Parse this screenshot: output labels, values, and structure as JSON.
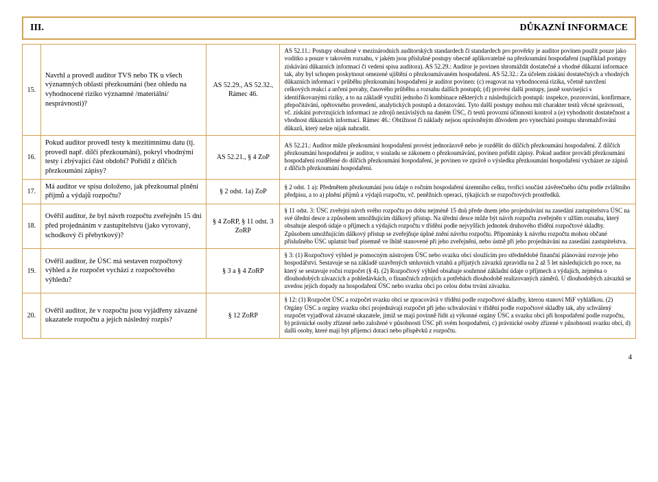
{
  "colors": {
    "border": "#d4a050",
    "text": "#000000",
    "background": "#ffffff"
  },
  "fonts": {
    "family": "Times New Roman",
    "body_size_pt": 10,
    "answer_size_pt": 9,
    "header_size_pt": 14
  },
  "section": {
    "number": "III.",
    "title": "DŮKAZNÍ INFORMACE"
  },
  "rows": [
    {
      "n": "15.",
      "question": "Navrhl a provedl auditor TVS nebo TK u všech významných oblastí přezkoumání (bez ohledu na vyhodnocené riziko významné /materiální/ nesprávnosti)?",
      "ref": "AS 52.29., AS 52.32., Rámec 46.",
      "answer": "AS 52.11.: Postupy obsažené v mezinárodních auditorských standardech či standardech pro prověrky je auditor povinen použít pouze jako vodítko a pouze v takovém rozsahu, v jakém jsou příslušné postupy obecně aplikovatelné na přezkoumání hospodaření (například postupy získávání důkazních informací či vedení spisu auditora). AS 52.29.: Auditor je povinen shromáždit dostatečné a vhodné důkazní informace tak, aby byl schopen poskytnout omezené ujištění o přezkoumávaném hospodaření. AS 52.32.: Za účelem získání dostatečných a vhodných důkazních informací v průběhu přezkoumání hospodaření je auditor povinen: (c) reagovat na vyhodnocená rizika, včetně navržení celkových reakcí a určení povahy, časového průběhu a rozsahu dalších postupů; (d) provést další postupy, jasně související s identifikovanými riziky, a to na základě využití jednoho či kombinace některých z následujících postupů: inspekce, pozorování, konfirmace, přepočítávání, opětovného provedení, analytických postupů a dotazování. Tyto další postupy mohou mít charakter testů věcné správnosti, vč. získání potvrzujících informací ze zdrojů nezávislých na daném ÚSC, či testů provozní účinnosti kontrol a (e) vyhodnotit dostatečnost a vhodnost důkazních informací. Rámec 46.: Obtížnost či náklady nejsou oprávněným důvodem pro vynechání postupu shromažďování důkazů, který nelze nijak nahradit."
    },
    {
      "n": "16.",
      "question": "Pokud auditor provedl testy k mezitímnímu datu (tj. provedl např. dílčí přezkoumání), pokryl vhodnými testy i zbývající část období? Pořídil z dílčích přezkoumání zápisy?",
      "ref": "AS 52.21., § 4 ZoP",
      "answer": "AS 52.21.: Auditor může přezkoumání hospodaření provést jednorázově nebo je rozdělit do dílčích přezkoumání hospodaření. Z dílčích přezkoumání hospodaření je auditor, v souladu se zákonem o přezkoumávání, povinen pořídit zápisy. Pokud auditor provádí přezkoumání hospodaření rozdělené do dílčích přezkoumání hospodaření, je povinen ve zprávě o výsledku přezkoumání hospodaření vycházet ze zápisů z dílčích přezkoumání hospodaření."
    },
    {
      "n": "17.",
      "question": "Má auditor ve spisu doloženo, jak přezkoumal plnění příjmů a výdajů rozpočtu?",
      "ref": "§ 2 odst. 1a) ZoP",
      "answer": "§ 2 odst. 1 a): Předmětem přezkoumání jsou údaje o ročním hospodaření územního celku, tvořící součást závěrečného účtu podle zvláštního předpisu, a to a) plnění příjmů a výdajů rozpočtu, vč. peněžních operací, týkajících se rozpočtových prostředků."
    },
    {
      "n": "18.",
      "question": "Ověřil auditor, že byl návrh rozpočtu zveřejněn 15 dní před projednáním v zastupitelstvu (jako vyrovaný, schodkový či přebytkový)?",
      "ref": "§ 4 ZoRP, § 11 odst. 3 ZoRP",
      "answer": "§ 11 odst. 3: ÚSC zveřejní návrh svého rozpočtu po dobu nejméně 15 dnů přede dnem jeho projednávání na zasedání zastupitelstva ÚSC na své úřední desce a způsobem umožňujícím dálkový přístup. Na úřední desce může být návrh rozpočtu zveřejněn v užším rozsahu, který obsahuje alespoň údaje o příjmech a výdajích rozpočtu v třídění podle nejvyšších jednotek druhového třídění rozpočtové skladby. Způsobem umožňujícím dálkový přístup se zveřejňuje úplné znění návrhu rozpočtu. Připomínky k návrhu rozpočtu mohou občané příslušného ÚSC uplatnit buď písemně ve lhůtě stanovené při jeho zveřejnění, nebo ústně při jeho projednávání na zasedání zastupitelstva."
    },
    {
      "n": "19.",
      "question": "Ověřil auditor, že ÚSC má sestaven rozpočtový výhled a že rozpočet vychází z rozpočtového výhledu?",
      "ref": "§ 3 a § 4 ZoRP",
      "answer": "§ 3: (1) Rozpočtový výhled je pomocným nástrojem ÚSC nebo svazku obcí sloužícím pro střednědobé finanční plánování rozvoje jeho hospodářství. Sestavuje se na základě uzavřených smluvních vztahů a přijatých závazků zpravidla na 2 až 5 let následujících po roce, na který se sestavuje roční rozpočet (§ 4). (2) Rozpočtový výhled obsahuje souhrnné základní údaje o příjmech a výdajích, zejména o dlouhodobých závazcích a pohledávkách, o finančních zdrojích a potřebách dlouhodobě realizovaných záměrů. U dlouhodobých závazků se uvedou jejich dopady na hospodaření ÚSC nebo svazku obcí po celou dobu trvání závazku."
    },
    {
      "n": "20.",
      "question": "Ověřil auditor, že v rozpočtu jsou vyjádřeny závazné ukazatele rozpočtu a jejich následný rozpis?",
      "ref": "§ 12 ZoRP",
      "answer": "§ 12: (1) Rozpočet ÚSC a rozpočet svazku obcí se zpracovává v třídění podle rozpočtové skladby, kterou stanoví MiF vyhláškou. (2) Orgány ÚSC a orgány svazku obcí projednávají rozpočet při jeho schvalování v třídění podle rozpočtové skladby tak, aby schválený rozpočet vyjadřoval závazné ukazatele, jimiž se mají povinně řídit a) výkonné orgány ÚSC a svazku obcí při hospodaření podle rozpočtu, b) právnické osoby zřízené nebo založené v působnosti ÚSC při svém hospodaření, c) právnické osoby zřízené v působnosti svazku obcí, d) další osoby, které mají být příjemci dotací nebo příspěvků z rozpočtu."
    }
  ],
  "page_number": "4"
}
